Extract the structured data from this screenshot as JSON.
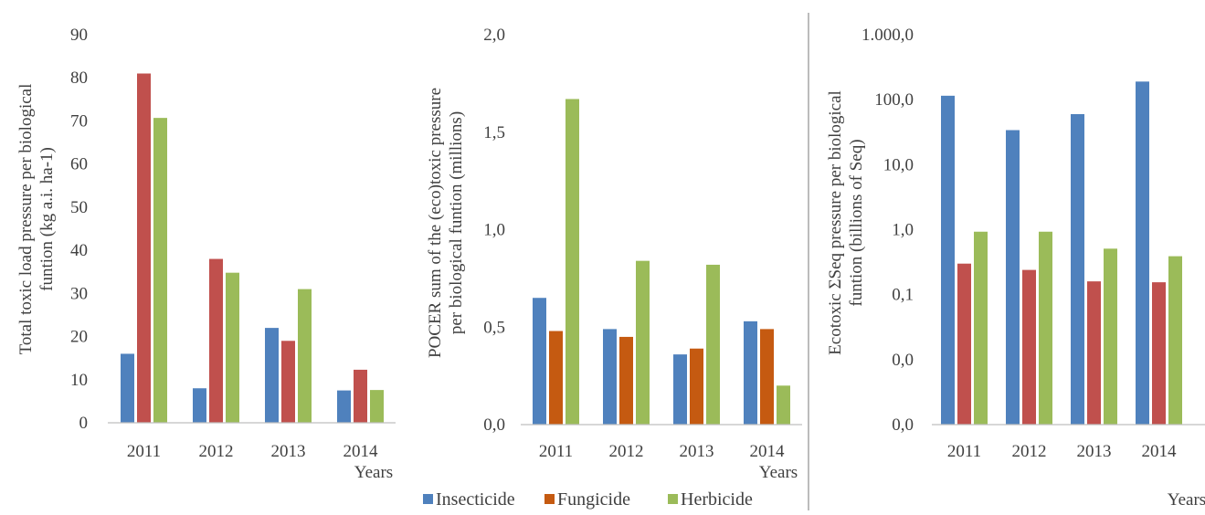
{
  "colors": {
    "insecticide": "#4f81bd",
    "fungicide_chart1": "#c0504d",
    "fungicide": "#c55a11",
    "herbicide": "#9bbb59",
    "axis": "#bfbfbf",
    "text": "#404040",
    "divider": "#a6a6a6"
  },
  "legend": {
    "items": [
      {
        "label": "Insecticide",
        "color": "#4f81bd"
      },
      {
        "label": "Fungicide",
        "color": "#c55a11"
      },
      {
        "label": "Herbicide",
        "color": "#9bbb59"
      }
    ]
  },
  "chart_data": [
    {
      "type": "bar",
      "categories": [
        "2011",
        "2012",
        "2013",
        "2014"
      ],
      "xlabel": "Years",
      "ylabel_lines": [
        "Total toxic load pressure per biological",
        "funtion  (kg a.i. ha-1)"
      ],
      "yticks": [
        "0",
        "10",
        "20",
        "30",
        "40",
        "50",
        "60",
        "70",
        "80",
        "90"
      ],
      "ylim": [
        0,
        90
      ],
      "scale": "linear",
      "series": [
        {
          "values": [
            16,
            8,
            22,
            7.5
          ],
          "color": "#4f81bd"
        },
        {
          "values": [
            81,
            38,
            19,
            12.3
          ],
          "color": "#c0504d"
        },
        {
          "values": [
            70.7,
            34.8,
            31,
            7.6
          ],
          "color": "#9bbb59"
        }
      ]
    },
    {
      "type": "bar",
      "categories": [
        "2011",
        "2012",
        "2013",
        "2014"
      ],
      "xlabel": "Years",
      "ylabel_lines": [
        "POCER sum of the (eco)toxic  pressure",
        "per biological  funtion  (millions)"
      ],
      "yticks": [
        "0,0",
        "0,5",
        "1,0",
        "1,5",
        "2,0"
      ],
      "ylim": [
        0,
        2
      ],
      "scale": "linear",
      "series": [
        {
          "values": [
            0.65,
            0.49,
            0.36,
            0.53
          ],
          "color": "#4f81bd"
        },
        {
          "values": [
            0.48,
            0.45,
            0.39,
            0.49
          ],
          "color": "#c55a11"
        },
        {
          "values": [
            1.67,
            0.84,
            0.82,
            0.2
          ],
          "color": "#9bbb59"
        }
      ]
    },
    {
      "type": "bar",
      "categories": [
        "2011",
        "2012",
        "2013",
        "2014"
      ],
      "xlabel": "Years",
      "ylabel_lines": [
        "Ecotoxic  ΣSeq pressure per biological",
        "funtion  (billions  of Seq)"
      ],
      "yticks": [
        "0,0",
        "0,0",
        "0,1",
        "1,0",
        "10,0",
        "100,0",
        "1.000,0"
      ],
      "ylim": [
        0.001,
        1000
      ],
      "scale": "log",
      "series": [
        {
          "values": [
            115,
            34,
            60,
            190
          ],
          "color": "#4f81bd"
        },
        {
          "values": [
            0.3,
            0.24,
            0.16,
            0.155
          ],
          "color": "#c0504d"
        },
        {
          "values": [
            0.93,
            0.93,
            0.51,
            0.39
          ],
          "color": "#9bbb59"
        }
      ]
    }
  ]
}
